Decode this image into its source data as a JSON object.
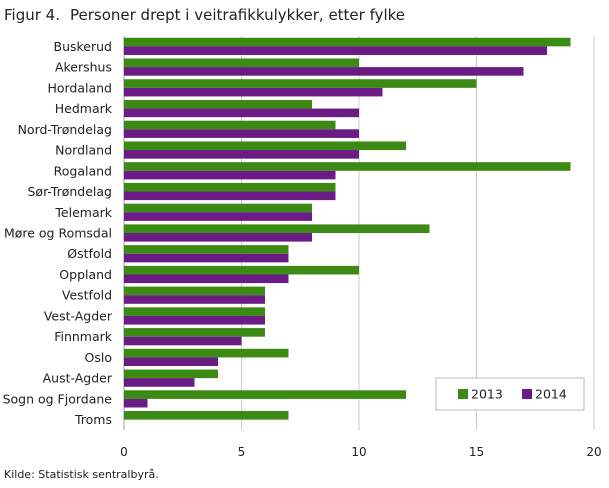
{
  "figure": {
    "label": "Figur 4.",
    "title": "Personer drept i veitrafikkulykker, etter fylke",
    "source": "Kilde: Statistisk sentralbyrå."
  },
  "colors": {
    "series_2013": "#3b8a13",
    "series_2014": "#6a1b84",
    "grid": "#cccccc",
    "axis": "#999999"
  },
  "chart_data": {
    "type": "bar",
    "orientation": "horizontal",
    "title": "Personer drept i veitrafikkulykker, etter fylke",
    "xlabel": "",
    "ylabel": "",
    "xlim": [
      0,
      20
    ],
    "xticks": [
      0,
      5,
      10,
      15,
      20
    ],
    "grid": true,
    "legend_position": "bottom-right",
    "categories": [
      "Buskerud",
      "Akershus",
      "Hordaland",
      "Hedmark",
      "Nord-Trøndelag",
      "Nordland",
      "Rogaland",
      "Sør-Trøndelag",
      "Telemark",
      "Møre og Romsdal",
      "Østfold",
      "Oppland",
      "Vestfold",
      "Vest-Agder",
      "Finnmark",
      "Oslo",
      "Aust-Agder",
      "Sogn og Fjordane",
      "Troms"
    ],
    "series": [
      {
        "name": "2013",
        "values": [
          19,
          10,
          15,
          8,
          9,
          12,
          19,
          9,
          8,
          13,
          7,
          10,
          6,
          6,
          6,
          7,
          4,
          12,
          7
        ]
      },
      {
        "name": "2014",
        "values": [
          18,
          17,
          11,
          10,
          10,
          10,
          9,
          9,
          8,
          8,
          7,
          7,
          6,
          6,
          5,
          4,
          3,
          1,
          null
        ]
      }
    ]
  }
}
